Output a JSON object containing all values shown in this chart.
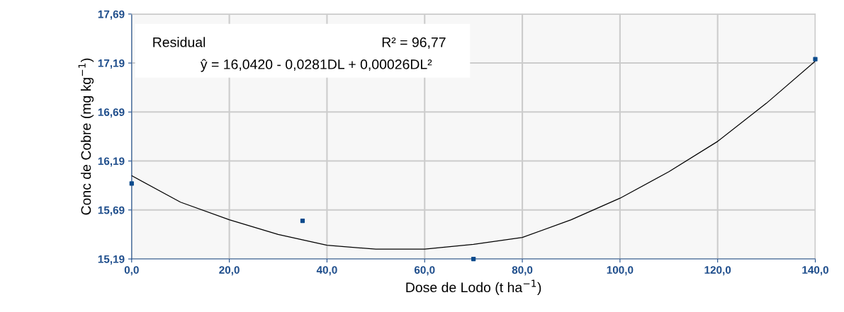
{
  "chart_data": {
    "type": "scatter",
    "xlabel": "Dose de Lodo (t ha$^{−1}$)",
    "ylabel": "Conc de Cobre (mg kg$^{−1}$)",
    "annotations": [
      "Residual",
      "R² = 96,77",
      "ŷ = 16,0420 - 0,0281DL + 0,00026DL²"
    ],
    "series": [
      {
        "color": "#0a4a8c",
        "marker": "square",
        "x": [
          0,
          35,
          70,
          140
        ],
        "values": [
          15.96,
          15.58,
          15.19,
          17.23
        ]
      },
      {
        "type": "line",
        "color": "#000000",
        "marker": "none",
        "line_style": "solid",
        "x": [
          0,
          10,
          20,
          30,
          40,
          50,
          60,
          70,
          80,
          90,
          100,
          110,
          120,
          130,
          140
        ],
        "values": [
          16.04,
          15.77,
          15.59,
          15.44,
          15.33,
          15.29,
          15.29,
          15.34,
          15.41,
          15.59,
          15.81,
          16.08,
          16.39,
          16.78,
          17.21
        ]
      }
    ],
    "xlim": [
      0,
      140
    ],
    "ylim": [
      15.19,
      17.69
    ],
    "xticks": [
      {
        "value": 0,
        "label": "0,0"
      },
      {
        "value": 20,
        "label": "20,0"
      },
      {
        "value": 40,
        "label": "40,0"
      },
      {
        "value": 60,
        "label": "60,0"
      },
      {
        "value": 80,
        "label": "80,0"
      },
      {
        "value": 100,
        "label": "100,0"
      },
      {
        "value": 120,
        "label": "120,0"
      },
      {
        "value": 140,
        "label": "140,0"
      }
    ],
    "yticks": [
      {
        "value": 15.19,
        "label": "15,19"
      },
      {
        "value": 15.69,
        "label": "15,69"
      },
      {
        "value": 16.19,
        "label": "16,19"
      },
      {
        "value": 16.69,
        "label": "16,69"
      },
      {
        "value": 17.19,
        "label": "17,19"
      },
      {
        "value": 17.69,
        "label": "17,69"
      }
    ],
    "grid": true,
    "legend": false
  }
}
